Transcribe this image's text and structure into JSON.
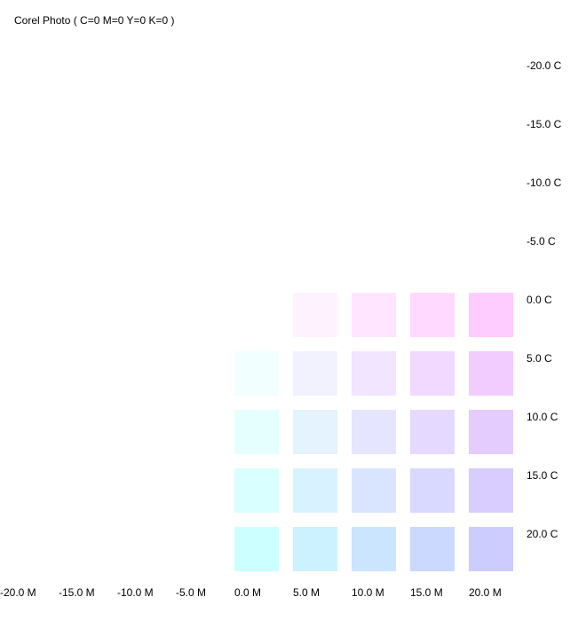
{
  "chart_data": {
    "type": "heatmap",
    "title": "Corel Photo ( C=0 M=0 Y=0 K=0 )",
    "x_label_suffix": "M",
    "y_label_suffix": "C",
    "x_ticks": [
      "-20.0 M",
      "-15.0 M",
      "-10.0 M",
      "-5.0 M",
      "0.0 M",
      "5.0 M",
      "10.0 M",
      "15.0 M",
      "20.0 M"
    ],
    "y_ticks": [
      "-20.0 C",
      "-15.0 C",
      "-10.0 C",
      "-5.0 C",
      "0.0 C",
      "5.0 C",
      "10.0 C",
      "15.0 C",
      "20.0 C"
    ],
    "x_values": [
      -20,
      -15,
      -10,
      -5,
      0,
      5,
      10,
      15,
      20
    ],
    "y_values": [
      -20,
      -15,
      -10,
      -5,
      0,
      5,
      10,
      15,
      20
    ],
    "cells": [
      {
        "m": 5,
        "c": 0,
        "color": "#FFF2FF"
      },
      {
        "m": 10,
        "c": 0,
        "color": "#FFE5FF"
      },
      {
        "m": 15,
        "c": 0,
        "color": "#FFD9FF"
      },
      {
        "m": 20,
        "c": 0,
        "color": "#FFCCFF"
      },
      {
        "m": 0,
        "c": 5,
        "color": "#F2FFFF"
      },
      {
        "m": 5,
        "c": 5,
        "color": "#F2F2FF"
      },
      {
        "m": 10,
        "c": 5,
        "color": "#F2E5FF"
      },
      {
        "m": 15,
        "c": 5,
        "color": "#F2D9FF"
      },
      {
        "m": 20,
        "c": 5,
        "color": "#F2CCFF"
      },
      {
        "m": 0,
        "c": 10,
        "color": "#E5FFFF"
      },
      {
        "m": 5,
        "c": 10,
        "color": "#E5F2FF"
      },
      {
        "m": 10,
        "c": 10,
        "color": "#E5E5FF"
      },
      {
        "m": 15,
        "c": 10,
        "color": "#E5D9FF"
      },
      {
        "m": 20,
        "c": 10,
        "color": "#E5CCFF"
      },
      {
        "m": 0,
        "c": 15,
        "color": "#D9FFFF"
      },
      {
        "m": 5,
        "c": 15,
        "color": "#D9F2FF"
      },
      {
        "m": 10,
        "c": 15,
        "color": "#D9E5FF"
      },
      {
        "m": 15,
        "c": 15,
        "color": "#D9D9FF"
      },
      {
        "m": 20,
        "c": 15,
        "color": "#D9CCFF"
      },
      {
        "m": 0,
        "c": 20,
        "color": "#CCFFFF"
      },
      {
        "m": 5,
        "c": 20,
        "color": "#CCF2FF"
      },
      {
        "m": 10,
        "c": 20,
        "color": "#CCE5FF"
      },
      {
        "m": 15,
        "c": 20,
        "color": "#CCD9FF"
      },
      {
        "m": 20,
        "c": 20,
        "color": "#CCCCFF"
      }
    ]
  }
}
